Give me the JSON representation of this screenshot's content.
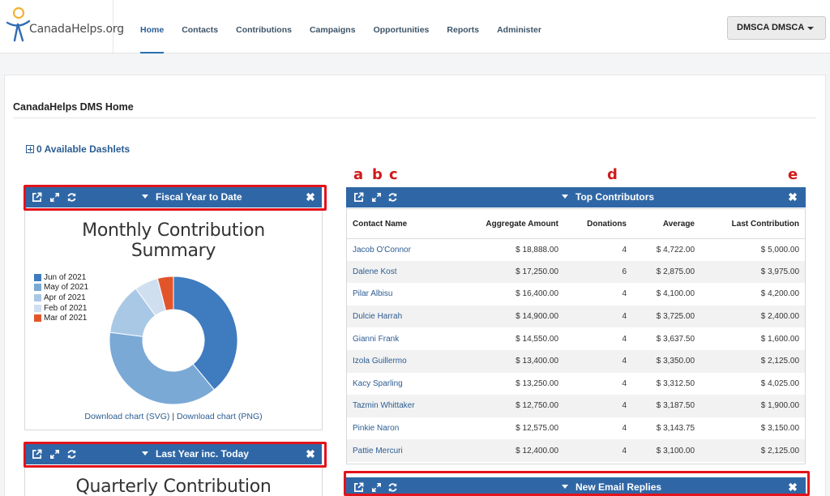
{
  "app": {
    "logo_text": "CanadaHelps.org",
    "user_menu": "DMSCA DMSCA"
  },
  "nav": {
    "items": [
      {
        "label": "Home",
        "active": true
      },
      {
        "label": "Contacts"
      },
      {
        "label": "Contributions"
      },
      {
        "label": "Campaigns"
      },
      {
        "label": "Opportunities"
      },
      {
        "label": "Reports"
      },
      {
        "label": "Administer"
      }
    ]
  },
  "page": {
    "title": "CanadaHelps DMS Home",
    "available_dashlets": "0 Available Dashlets"
  },
  "annotations": [
    "a",
    "b",
    "c",
    "d",
    "e"
  ],
  "dashlets": {
    "fiscal": {
      "title": "Fiscal Year to Date",
      "chart_title_line1": "Monthly Contribution",
      "chart_title_line2": "Summary",
      "download_svg": "Download chart (SVG)",
      "download_sep": "|",
      "download_png": "Download chart (PNG)"
    },
    "last_year": {
      "title": "Last Year inc. Today",
      "chart_title": "Quarterly Contribution"
    },
    "top_contributors": {
      "title": "Top Contributors",
      "columns": [
        "Contact Name",
        "Aggregate Amount",
        "Donations",
        "Average",
        "Last Contribution"
      ],
      "rows": [
        [
          "Jacob O'Connor",
          "$ 18,888.00",
          "4",
          "$ 4,722.00",
          "$ 5,000.00"
        ],
        [
          "Dalene Kost",
          "$ 17,250.00",
          "6",
          "$ 2,875.00",
          "$ 3,975.00"
        ],
        [
          "Pilar Albisu",
          "$ 16,400.00",
          "4",
          "$ 4,100.00",
          "$ 4,200.00"
        ],
        [
          "Dulcie Harrah",
          "$ 14,900.00",
          "4",
          "$ 3,725.00",
          "$ 2,400.00"
        ],
        [
          "Gianni Frank",
          "$ 14,550.00",
          "4",
          "$ 3,637.50",
          "$ 1,600.00"
        ],
        [
          "Izola Guillermo",
          "$ 13,400.00",
          "4",
          "$ 3,350.00",
          "$ 2,125.00"
        ],
        [
          "Kacy Sparling",
          "$ 13,250.00",
          "4",
          "$ 3,312.50",
          "$ 4,025.00"
        ],
        [
          "Tazmin Whittaker",
          "$ 12,750.00",
          "4",
          "$ 3,187.50",
          "$ 1,900.00"
        ],
        [
          "Pinkie Naron",
          "$ 12,575.00",
          "4",
          "$ 3,143.75",
          "$ 3,150.00"
        ],
        [
          "Pattie Mercuri",
          "$ 12,400.00",
          "4",
          "$ 3,100.00",
          "$ 2,125.00"
        ]
      ]
    },
    "email": {
      "title": "New Email Replies"
    }
  },
  "colors": {
    "bar_blue": "#2f67a6",
    "highlight_red": "#e3131b",
    "link_blue": "#2b5c92"
  },
  "chart_data": {
    "type": "pie",
    "title": "Monthly Contribution Summary",
    "categories": [
      "Jun of 2021",
      "May of 2021",
      "Apr of 2021",
      "Feb of 2021",
      "Mar of 2021"
    ],
    "values": [
      39,
      38,
      13,
      6,
      4
    ],
    "colors": [
      "#3f7bbf",
      "#7aa9d6",
      "#a9c8e6",
      "#cfdff0",
      "#e2552b"
    ],
    "donut": true,
    "legend_position": "left"
  }
}
